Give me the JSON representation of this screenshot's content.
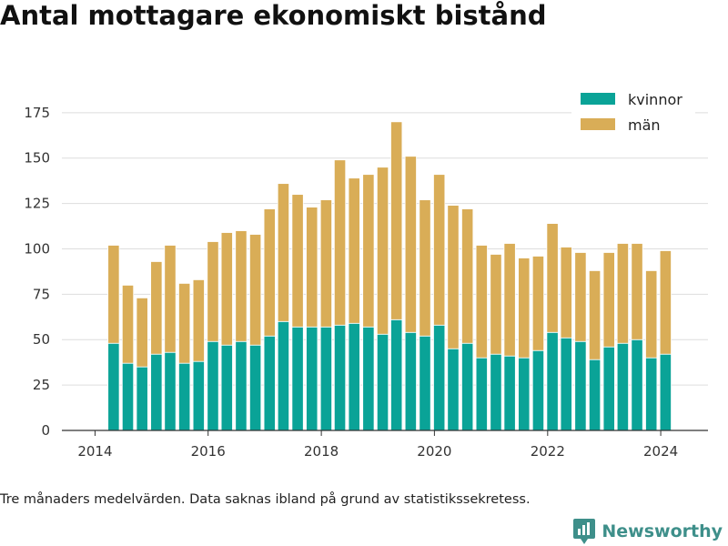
{
  "title": "Antal mottagare ekonomiskt bistånd",
  "footnote": "Tre månaders medelvärden. Data saknas ibland på grund av statistikssekretess.",
  "brand": {
    "name": "Newsworthy",
    "icon": "newsworthy-logo-icon"
  },
  "colors": {
    "kvinnor": "#0aa397",
    "man": "#d9ad57",
    "grid": "#dddddd",
    "axis": "#333333",
    "brand": "#3e8f8a"
  },
  "chart_data": {
    "type": "bar",
    "stacked": true,
    "title": "Antal mottagare ekonomiskt bistånd",
    "x_ticks": [
      "2014",
      "2016",
      "2018",
      "2020",
      "2022",
      "2024"
    ],
    "y_ticks": [
      "0",
      "25",
      "50",
      "75",
      "100",
      "125",
      "150",
      "175"
    ],
    "ylim": [
      0,
      185
    ],
    "grid": true,
    "legend_position": "top-right",
    "x": [
      "2014-05",
      "2014-08",
      "2014-11",
      "2015-02",
      "2015-05",
      "2015-08",
      "2015-11",
      "2016-02",
      "2016-05",
      "2016-08",
      "2016-11",
      "2017-02",
      "2017-05",
      "2017-08",
      "2017-11",
      "2018-02",
      "2018-05",
      "2018-08",
      "2018-11",
      "2019-02",
      "2019-05",
      "2019-08",
      "2019-11",
      "2020-02",
      "2020-05",
      "2020-08",
      "2020-11",
      "2021-02",
      "2021-05",
      "2021-08",
      "2021-11",
      "2022-02",
      "2022-05",
      "2022-08",
      "2022-11",
      "2023-02",
      "2023-05",
      "2023-08",
      "2023-11",
      "2024-02"
    ],
    "series": [
      {
        "name": "kvinnor",
        "values": [
          48,
          37,
          35,
          42,
          43,
          37,
          38,
          49,
          47,
          49,
          47,
          52,
          60,
          57,
          57,
          57,
          58,
          59,
          57,
          53,
          61,
          54,
          52,
          58,
          45,
          48,
          40,
          42,
          41,
          40,
          44,
          54,
          51,
          49,
          39,
          46,
          48,
          50,
          40,
          42
        ]
      },
      {
        "name": "män",
        "values": [
          54,
          43,
          38,
          51,
          59,
          44,
          45,
          55,
          62,
          61,
          61,
          70,
          76,
          73,
          66,
          70,
          91,
          80,
          84,
          92,
          109,
          97,
          75,
          83,
          79,
          74,
          62,
          55,
          62,
          55,
          52,
          60,
          50,
          49,
          49,
          52,
          55,
          53,
          48,
          57
        ]
      }
    ]
  }
}
